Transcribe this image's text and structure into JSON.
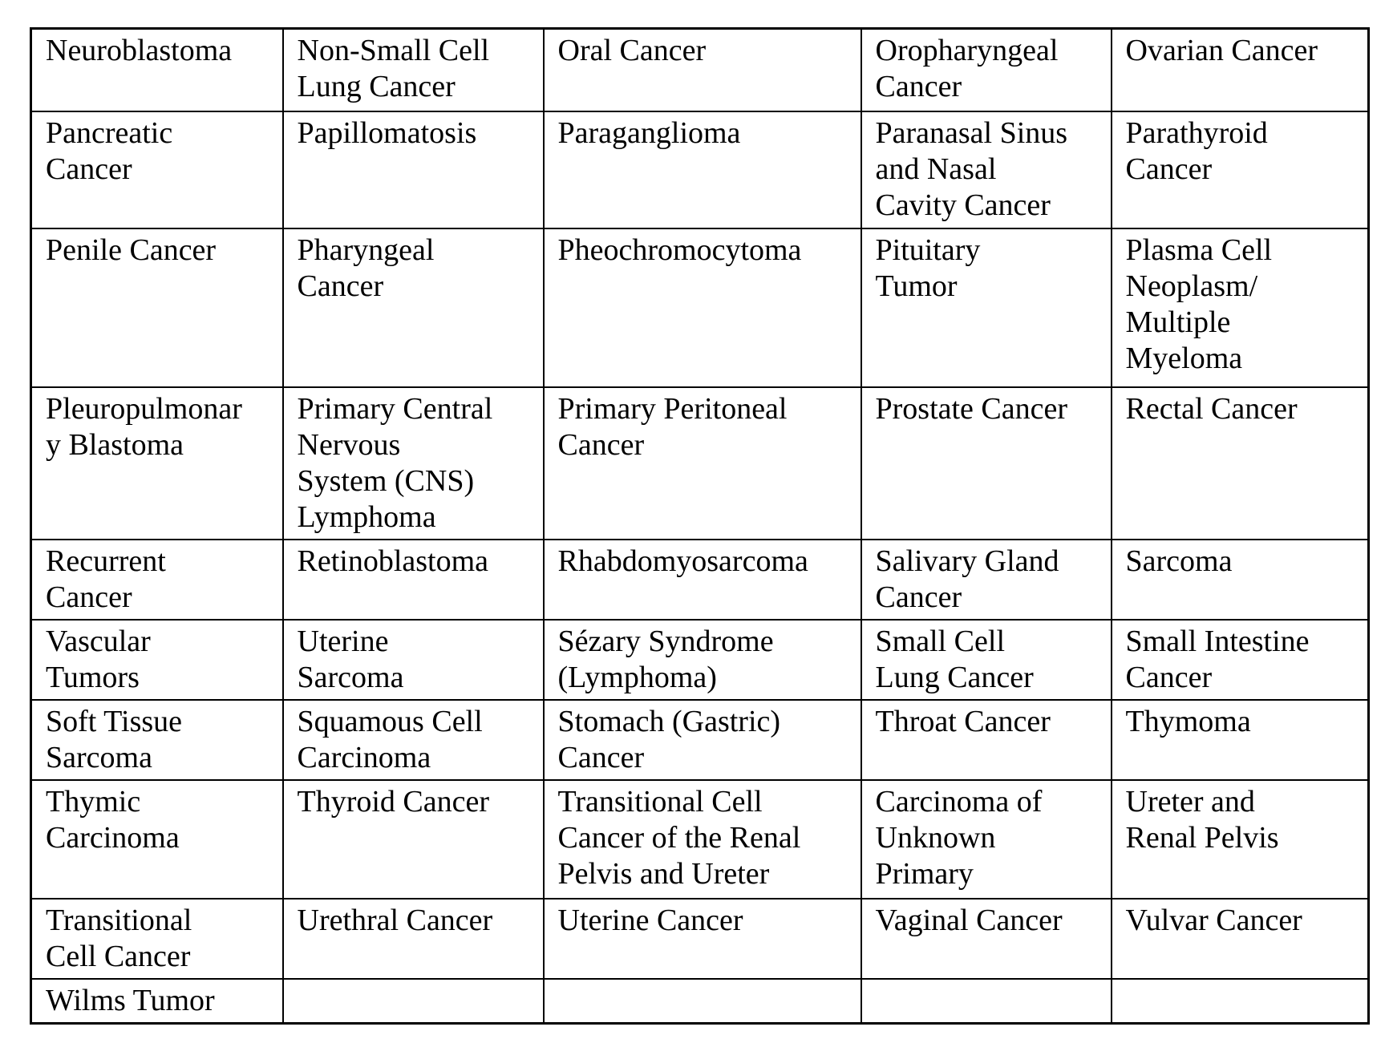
{
  "table": {
    "rows": [
      [
        "Neuroblastoma",
        "Non-Small Cell\nLung Cancer",
        "Oral Cancer",
        "Oropharyngeal\nCancer",
        "Ovarian Cancer"
      ],
      [
        "Pancreatic\nCancer",
        "Papillomatosis",
        "Paraganglioma",
        "Paranasal Sinus\nand Nasal\nCavity Cancer",
        "Parathyroid\nCancer"
      ],
      [
        "Penile Cancer",
        "Pharyngeal\nCancer",
        "Pheochromocytoma",
        "Pituitary\nTumor",
        "Plasma Cell\nNeoplasm/\nMultiple\nMyeloma"
      ],
      [
        "Pleuropulmonar\ny Blastoma",
        "Primary Central\nNervous\nSystem (CNS)\nLymphoma",
        "Primary Peritoneal\nCancer",
        "Prostate Cancer",
        "Rectal Cancer"
      ],
      [
        "Recurrent\nCancer",
        "Retinoblastoma",
        "Rhabdomyosarcoma",
        "Salivary Gland\nCancer",
        "Sarcoma"
      ],
      [
        "Vascular\nTumors",
        "Uterine\nSarcoma",
        "Sézary Syndrome\n(Lymphoma)",
        "Small Cell\nLung Cancer",
        "Small Intestine\nCancer"
      ],
      [
        "Soft Tissue\nSarcoma",
        "Squamous Cell\nCarcinoma",
        "Stomach (Gastric)\nCancer",
        "Throat Cancer",
        "Thymoma"
      ],
      [
        "Thymic\nCarcinoma",
        "Thyroid Cancer",
        "Transitional Cell\nCancer of the Renal\nPelvis and Ureter",
        "Carcinoma of\nUnknown\nPrimary",
        "Ureter and\nRenal Pelvis"
      ],
      [
        "Transitional\nCell Cancer",
        "Urethral Cancer",
        "Uterine Cancer",
        "Vaginal Cancer",
        "Vulvar Cancer"
      ],
      [
        "Wilms Tumor",
        "",
        "",
        "",
        ""
      ]
    ]
  }
}
